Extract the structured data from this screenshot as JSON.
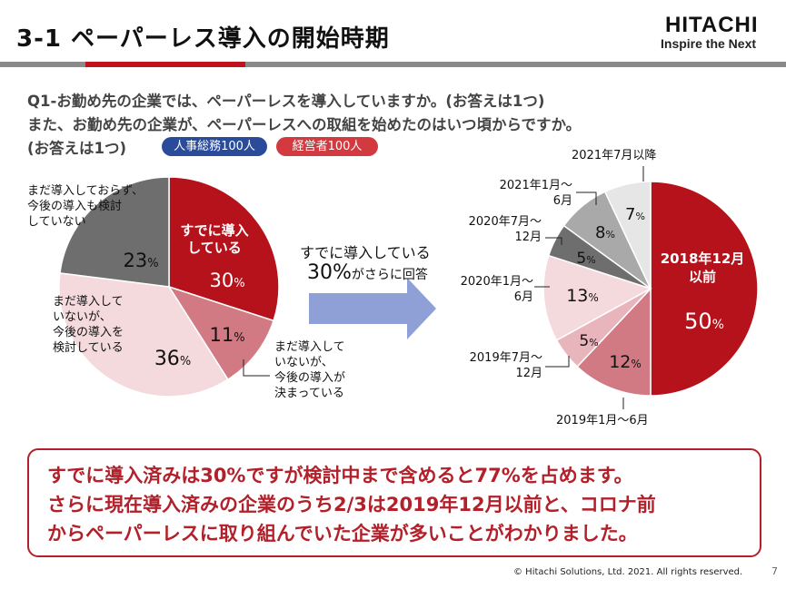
{
  "header": {
    "title": "3-1  ペーパーレス導入の開始時期",
    "logo": "HITACHI",
    "tagline": "Inspire the Next"
  },
  "question": {
    "line1": "Q1-お勤め先の企業では、ペーパーレスを導入していますか。(お答えは1つ)",
    "line2": "また、お勤め先の企業が、ペーパーレスへの取組を始めたのはいつ頃からですか。",
    "line3": "(お答えは1つ)",
    "badge_hr": "人事総務100人",
    "badge_mgmt": "経営者100人"
  },
  "arrow": {
    "line1": "すでに導入している",
    "pct": "30%",
    "line2": "がさらに回答"
  },
  "conclusion": {
    "line1": "すでに導入済みは30%ですが検討中まで含めると77%を占めます。",
    "line2": "さらに現在導入済みの企業のうち2/3は2019年12月以前と、コロナ前",
    "line3": "からペーパーレスに取り組んでいた企業が多いことがわかりました。"
  },
  "footer": {
    "copyright": "© Hitachi Solutions, Ltd. 2021. All rights reserved.",
    "page": "7"
  },
  "colors": {
    "dark_red": "#b5121b",
    "mid_red": "#d27a83",
    "light_pink": "#f4d9dd",
    "dark_grey": "#6e6e6e",
    "mid_grey": "#a9a9a9",
    "light_grey": "#e6e6e6",
    "accent": "#c0121d",
    "arrow_blue": "#8ea0d6"
  },
  "chart_data": [
    {
      "type": "pie",
      "title": "",
      "slices": [
        {
          "label": "すでに導入している",
          "value": 30,
          "value_label": "30%"
        },
        {
          "label": "まだ導入していないが、今後の導入が決まっている",
          "value": 11,
          "value_label": "11%"
        },
        {
          "label": "まだ導入していないが、今後の導入を検討している",
          "value": 36,
          "value_label": "36%"
        },
        {
          "label": "まだ導入しておらず、今後の導入も検討していない",
          "value": 23,
          "value_label": "23%"
        }
      ],
      "label_texts": {
        "s0": [
          "すでに導入",
          "している"
        ],
        "s1": [
          "まだ導入して",
          "いないが、",
          "今後の導入が",
          "決まっている"
        ],
        "s2": [
          "まだ導入して",
          "いないが、",
          "今後の導入を",
          "検討している"
        ],
        "s3": [
          "まだ導入しておらず、",
          "今後の導入も検討",
          "していない"
        ]
      }
    },
    {
      "type": "pie",
      "title": "",
      "slices": [
        {
          "label": "2018年12月以前",
          "value": 50,
          "value_label": "50%"
        },
        {
          "label": "2019年1月～6月",
          "value": 12,
          "value_label": "12%"
        },
        {
          "label": "2019年7月～12月",
          "value": 5,
          "value_label": "5%"
        },
        {
          "label": "2020年1月～6月",
          "value": 13,
          "value_label": "13%"
        },
        {
          "label": "2020年7月～12月",
          "value": 5,
          "value_label": "5%"
        },
        {
          "label": "2021年1月～6月",
          "value": 8,
          "value_label": "8%"
        },
        {
          "label": "2021年7月以降",
          "value": 7,
          "value_label": "7%"
        }
      ],
      "label_texts": {
        "s0": [
          "2018年12月",
          "以前"
        ],
        "s1": [
          "2019年1月～6月"
        ],
        "s2": [
          "2019年7月～",
          "12月"
        ],
        "s3": [
          "2020年1月～",
          "6月"
        ],
        "s4": [
          "2020年7月～",
          "12月"
        ],
        "s5": [
          "2021年1月～",
          "6月"
        ],
        "s6": [
          "2021年7月以降"
        ]
      }
    }
  ]
}
